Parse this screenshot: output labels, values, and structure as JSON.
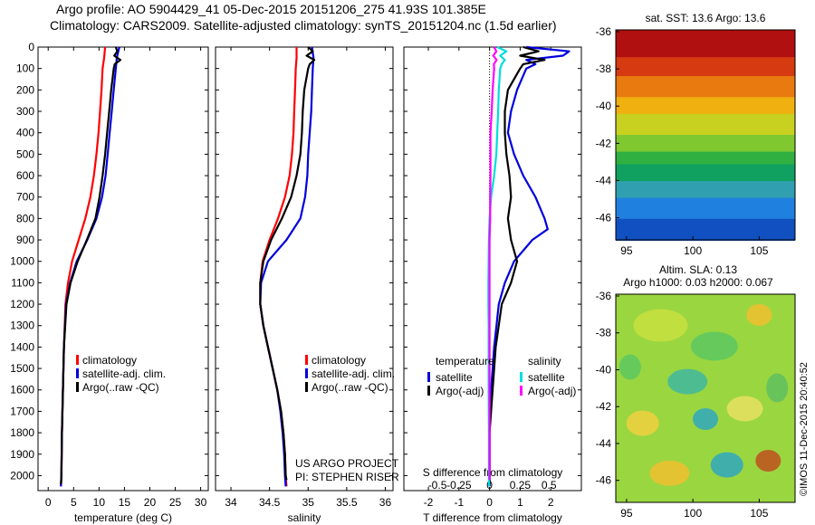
{
  "header": {
    "line1": "Argo profile: AO 5904429_41 05-Dec-2015 20151206_275 41.93S 101.385E",
    "line2": "Climatology: CARS2009. Satellite-adjusted climatology: synTS_20151204.nc (1.5d earlier)"
  },
  "colors": {
    "climatology": "#ff0000",
    "satellite": "#0000dd",
    "argo": "#000000",
    "sal_satellite": "#00dddd",
    "sal_argo": "#ff00ff"
  },
  "chart_data": [
    {
      "type": "line",
      "name": "temperature-panel",
      "xlabel": "temperature (deg C)",
      "ylabel": "",
      "xlim": [
        -2,
        31.5
      ],
      "ylim": [
        0,
        2070
      ],
      "y_reversed": true,
      "xticks": [
        0,
        5,
        10,
        15,
        20,
        25,
        30
      ],
      "yticks": [
        0,
        100,
        200,
        300,
        400,
        500,
        600,
        700,
        800,
        900,
        1000,
        1100,
        1200,
        1300,
        1400,
        1500,
        1600,
        1700,
        1800,
        1900,
        2000
      ],
      "legend": [
        "climatology",
        "satellite-adj. clim.",
        "Argo(..raw -QC)"
      ],
      "series": [
        {
          "name": "climatology",
          "color": "#ff0000",
          "points": [
            [
              11.2,
              0
            ],
            [
              11.0,
              50
            ],
            [
              10.7,
              100
            ],
            [
              10.5,
              200
            ],
            [
              10.2,
              300
            ],
            [
              9.9,
              400
            ],
            [
              9.5,
              500
            ],
            [
              9.0,
              600
            ],
            [
              8.3,
              700
            ],
            [
              7.3,
              800
            ],
            [
              6.0,
              900
            ],
            [
              4.7,
              1000
            ],
            [
              3.9,
              1100
            ],
            [
              3.4,
              1200
            ],
            [
              3.1,
              1400
            ],
            [
              2.9,
              1600
            ],
            [
              2.7,
              1800
            ],
            [
              2.6,
              2000
            ],
            [
              2.5,
              2050
            ]
          ]
        },
        {
          "name": "satellite-adj. clim.",
          "color": "#0000dd",
          "points": [
            [
              14.0,
              0
            ],
            [
              13.5,
              50
            ],
            [
              13.3,
              100
            ],
            [
              12.9,
              200
            ],
            [
              12.5,
              300
            ],
            [
              12.1,
              400
            ],
            [
              11.7,
              500
            ],
            [
              11.3,
              600
            ],
            [
              10.6,
              700
            ],
            [
              9.5,
              800
            ],
            [
              7.7,
              900
            ],
            [
              5.6,
              1000
            ],
            [
              4.3,
              1100
            ],
            [
              3.5,
              1200
            ],
            [
              3.1,
              1400
            ],
            [
              2.9,
              1600
            ],
            [
              2.7,
              1800
            ],
            [
              2.6,
              2000
            ],
            [
              2.5,
              2050
            ]
          ]
        },
        {
          "name": "Argo(..raw -QC)",
          "color": "#000000",
          "points": [
            [
              13.3,
              0
            ],
            [
              13.6,
              20
            ],
            [
              13.0,
              40
            ],
            [
              14.2,
              60
            ],
            [
              13.1,
              80
            ],
            [
              12.9,
              100
            ],
            [
              12.4,
              200
            ],
            [
              12.0,
              300
            ],
            [
              11.6,
              400
            ],
            [
              11.2,
              500
            ],
            [
              10.7,
              600
            ],
            [
              10.1,
              700
            ],
            [
              9.3,
              800
            ],
            [
              7.6,
              900
            ],
            [
              5.8,
              1000
            ],
            [
              4.4,
              1100
            ],
            [
              3.6,
              1200
            ],
            [
              3.1,
              1400
            ],
            [
              2.9,
              1600
            ],
            [
              2.7,
              1800
            ],
            [
              2.6,
              2000
            ],
            [
              2.5,
              2040
            ]
          ]
        }
      ]
    },
    {
      "type": "line",
      "name": "salinity-panel",
      "xlabel": "salinity",
      "xlim": [
        33.8,
        36.1
      ],
      "ylim": [
        0,
        2070
      ],
      "y_reversed": true,
      "xticks": [
        34,
        34.5,
        35,
        35.5,
        36
      ],
      "legend": [
        "climatology",
        "satellite-adj. clim.",
        "Argo(..raw -QC)"
      ],
      "annotation": [
        "US ARGO PROJECT",
        "PI: STEPHEN RISER"
      ],
      "series": [
        {
          "name": "climatology",
          "color": "#ff0000",
          "points": [
            [
              34.85,
              0
            ],
            [
              34.85,
              50
            ],
            [
              34.84,
              100
            ],
            [
              34.83,
              200
            ],
            [
              34.82,
              300
            ],
            [
              34.81,
              400
            ],
            [
              34.79,
              500
            ],
            [
              34.76,
              600
            ],
            [
              34.7,
              700
            ],
            [
              34.61,
              800
            ],
            [
              34.5,
              900
            ],
            [
              34.41,
              1000
            ],
            [
              34.38,
              1100
            ],
            [
              34.38,
              1200
            ],
            [
              34.42,
              1300
            ],
            [
              34.48,
              1400
            ],
            [
              34.54,
              1500
            ],
            [
              34.6,
              1600
            ],
            [
              34.65,
              1700
            ],
            [
              34.68,
              1800
            ],
            [
              34.7,
              1900
            ],
            [
              34.71,
              2000
            ],
            [
              34.72,
              2050
            ]
          ]
        },
        {
          "name": "satellite-adj. clim.",
          "color": "#0000dd",
          "points": [
            [
              35.05,
              0
            ],
            [
              35.07,
              50
            ],
            [
              35.06,
              100
            ],
            [
              35.05,
              200
            ],
            [
              35.04,
              300
            ],
            [
              35.02,
              400
            ],
            [
              35.0,
              500
            ],
            [
              34.99,
              600
            ],
            [
              34.96,
              700
            ],
            [
              34.9,
              800
            ],
            [
              34.72,
              900
            ],
            [
              34.48,
              1000
            ],
            [
              34.39,
              1100
            ],
            [
              34.38,
              1200
            ],
            [
              34.42,
              1300
            ],
            [
              34.48,
              1400
            ],
            [
              34.54,
              1500
            ],
            [
              34.6,
              1600
            ],
            [
              34.64,
              1700
            ],
            [
              34.67,
              1800
            ],
            [
              34.69,
              1900
            ],
            [
              34.7,
              2000
            ],
            [
              34.71,
              2050
            ]
          ]
        },
        {
          "name": "Argo(..raw -QC)",
          "color": "#000000",
          "points": [
            [
              35.0,
              0
            ],
            [
              35.06,
              20
            ],
            [
              34.98,
              40
            ],
            [
              35.08,
              60
            ],
            [
              35.02,
              80
            ],
            [
              35.0,
              100
            ],
            [
              34.95,
              200
            ],
            [
              34.93,
              300
            ],
            [
              34.92,
              400
            ],
            [
              34.9,
              500
            ],
            [
              34.85,
              600
            ],
            [
              34.78,
              700
            ],
            [
              34.66,
              800
            ],
            [
              34.52,
              900
            ],
            [
              34.42,
              1000
            ],
            [
              34.38,
              1100
            ],
            [
              34.38,
              1200
            ],
            [
              34.42,
              1300
            ],
            [
              34.48,
              1400
            ],
            [
              34.54,
              1500
            ],
            [
              34.6,
              1600
            ],
            [
              34.65,
              1700
            ],
            [
              34.68,
              1800
            ],
            [
              34.7,
              1900
            ],
            [
              34.71,
              2000
            ],
            [
              34.72,
              2020
            ]
          ]
        }
      ]
    },
    {
      "type": "line",
      "name": "difference-panel",
      "xlabel": "T difference from climatology",
      "xlabel2": "S difference from climatology",
      "xlim": [
        -2.8,
        3.0
      ],
      "ylim": [
        0,
        2070
      ],
      "y_reversed": true,
      "xticks": [
        -2,
        -1,
        0,
        1,
        2
      ],
      "xticks_S": [
        "-0.5",
        "-0.25",
        "0",
        "0.25",
        "0.5"
      ],
      "legend_headers": [
        "temperature",
        "salinity"
      ],
      "legend": [
        "satellite",
        "Argo(-adj)",
        "satellite",
        "Argo(-adj)"
      ],
      "series": [
        {
          "name": "temperature satellite",
          "color": "#0000dd",
          "points": [
            [
              1.2,
              0
            ],
            [
              2.6,
              20
            ],
            [
              2.4,
              40
            ],
            [
              1.2,
              60
            ],
            [
              1.5,
              80
            ],
            [
              1.2,
              100
            ],
            [
              0.9,
              200
            ],
            [
              0.7,
              300
            ],
            [
              0.6,
              400
            ],
            [
              0.8,
              500
            ],
            [
              1.1,
              600
            ],
            [
              1.5,
              700
            ],
            [
              1.8,
              800
            ],
            [
              1.9,
              850
            ],
            [
              1.4,
              900
            ],
            [
              0.8,
              1000
            ],
            [
              0.5,
              1100
            ],
            [
              0.3,
              1200
            ],
            [
              0.15,
              1400
            ],
            [
              0.05,
              1600
            ],
            [
              0.0,
              1800
            ],
            [
              0.0,
              2000
            ],
            [
              0.0,
              2050
            ]
          ]
        },
        {
          "name": "temperature Argo(-adj)",
          "color": "#000000",
          "points": [
            [
              1.1,
              0
            ],
            [
              1.6,
              20
            ],
            [
              1.0,
              40
            ],
            [
              1.8,
              60
            ],
            [
              1.1,
              80
            ],
            [
              1.0,
              100
            ],
            [
              0.6,
              200
            ],
            [
              0.5,
              300
            ],
            [
              0.5,
              400
            ],
            [
              0.55,
              500
            ],
            [
              0.65,
              600
            ],
            [
              0.7,
              700
            ],
            [
              0.6,
              800
            ],
            [
              0.7,
              900
            ],
            [
              0.9,
              1000
            ],
            [
              0.7,
              1100
            ],
            [
              0.4,
              1200
            ],
            [
              0.2,
              1400
            ],
            [
              0.1,
              1600
            ],
            [
              0.0,
              1800
            ],
            [
              0.0,
              2000
            ],
            [
              0.0,
              2040
            ]
          ]
        },
        {
          "name": "salinity satellite",
          "color": "#00dddd",
          "points": [
            [
              0.25,
              0
            ],
            [
              0.55,
              20
            ],
            [
              0.35,
              40
            ],
            [
              0.5,
              60
            ],
            [
              0.4,
              80
            ],
            [
              0.35,
              100
            ],
            [
              0.3,
              200
            ],
            [
              0.28,
              300
            ],
            [
              0.25,
              400
            ],
            [
              0.22,
              500
            ],
            [
              0.15,
              600
            ],
            [
              0.05,
              700
            ],
            [
              0.0,
              800
            ],
            [
              -0.02,
              900
            ],
            [
              -0.03,
              1000
            ],
            [
              -0.04,
              1100
            ],
            [
              -0.04,
              1200
            ],
            [
              -0.03,
              1300
            ],
            [
              -0.03,
              1400
            ],
            [
              -0.03,
              1600
            ],
            [
              -0.02,
              1800
            ],
            [
              -0.02,
              2000
            ],
            [
              -0.02,
              2050
            ]
          ]
        },
        {
          "name": "salinity Argo(-adj)",
          "color": "#ff00ff",
          "points": [
            [
              0.15,
              0
            ],
            [
              0.22,
              20
            ],
            [
              0.12,
              40
            ],
            [
              0.23,
              60
            ],
            [
              0.14,
              80
            ],
            [
              0.15,
              100
            ],
            [
              0.1,
              200
            ],
            [
              0.07,
              300
            ],
            [
              0.03,
              400
            ],
            [
              0.03,
              500
            ],
            [
              0.03,
              600
            ],
            [
              0.02,
              700
            ],
            [
              0.02,
              800
            ],
            [
              0.0,
              900
            ],
            [
              0.0,
              1000
            ],
            [
              0.0,
              1100
            ],
            [
              0.0,
              1200
            ],
            [
              0.0,
              1300
            ],
            [
              0.0,
              1400
            ],
            [
              0.0,
              1600
            ],
            [
              0.0,
              1800
            ],
            [
              0.0,
              2000
            ],
            [
              0.0,
              2020
            ]
          ]
        }
      ]
    }
  ],
  "maps": {
    "sst": {
      "title": "sat. SST: 13.6 Argo: 13.6",
      "yticks": [
        "-36",
        "-38",
        "-40",
        "-42",
        "-44",
        "-46"
      ],
      "xticks": [
        "95",
        "100",
        "105"
      ]
    },
    "sla": {
      "title1": "Altim. SLA: 0.13",
      "title2": "Argo h1000: 0.03 h2000: 0.067",
      "yticks": [
        "-36",
        "-38",
        "-40",
        "-42",
        "-44",
        "-46"
      ],
      "xticks": [
        "95",
        "100",
        "105"
      ],
      "side_label": "©IMOS 11-Dec-2015 20:40:52"
    }
  }
}
